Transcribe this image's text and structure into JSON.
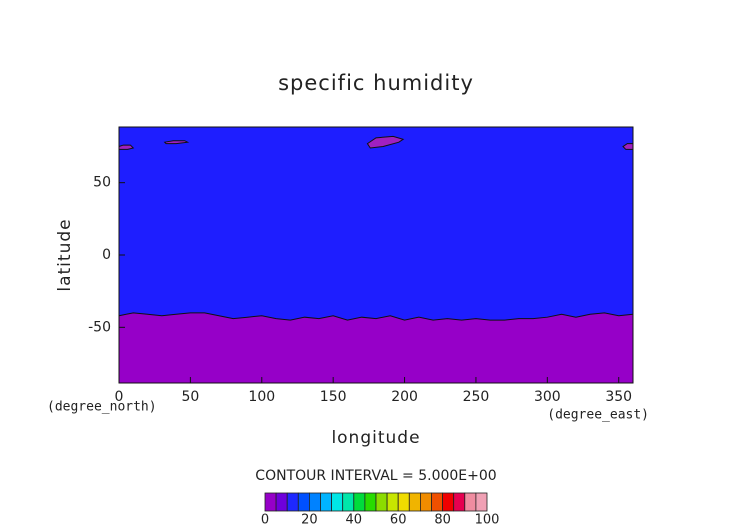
{
  "chart_data": {
    "type": "contour",
    "title": "specific humidity",
    "x_label": "longitude",
    "y_label": "latitude",
    "x_unit": "(degree_east)",
    "y_unit": "(degree_north)",
    "xlim": [
      0,
      360
    ],
    "xticks": [
      0,
      50,
      100,
      150,
      200,
      250,
      300,
      350
    ],
    "ylim": [
      -88.5,
      88.5
    ],
    "yticks": [
      -50,
      0,
      50
    ],
    "above_color": "#1e1eff",
    "below_color": "#9600c8",
    "patch_color": "#a020c0",
    "boundary": {
      "x": [
        0,
        10,
        20,
        30,
        40,
        50,
        60,
        70,
        80,
        90,
        100,
        110,
        120,
        130,
        140,
        150,
        160,
        170,
        180,
        190,
        200,
        210,
        220,
        230,
        240,
        250,
        260,
        270,
        280,
        290,
        300,
        310,
        320,
        330,
        340,
        350,
        360
      ],
      "y": [
        -42,
        -40,
        -41,
        -42,
        -41,
        -40,
        -40,
        -42,
        -44,
        -43,
        -42,
        -44,
        -45,
        -43,
        -44,
        -42,
        -45,
        -43,
        -44,
        -42,
        -45,
        -43,
        -45,
        -44,
        -45,
        -44,
        -45,
        -45,
        -44,
        -44,
        -43,
        -41,
        -43,
        -41,
        -40,
        -42,
        -41
      ]
    },
    "patches": [
      {
        "x": [
          0,
          3,
          8,
          10,
          6,
          0
        ],
        "y": [
          75,
          76,
          76,
          74,
          73,
          73
        ]
      },
      {
        "x": [
          32,
          38,
          46,
          48,
          40,
          33
        ],
        "y": [
          78,
          79,
          79,
          78,
          77,
          77
        ]
      },
      {
        "x": [
          174,
          180,
          192,
          199,
          196,
          185,
          176
        ],
        "y": [
          77,
          81,
          82,
          80,
          78,
          75,
          74
        ]
      },
      {
        "x": [
          353,
          356,
          360,
          360,
          355
        ],
        "y": [
          75,
          77,
          77,
          73,
          73
        ]
      }
    ],
    "contour_interval": "CONTOUR INTERVAL = 5.000E+00",
    "colorbar": {
      "levels": [
        0,
        5,
        10,
        15,
        20,
        25,
        30,
        35,
        40,
        45,
        50,
        55,
        60,
        65,
        70,
        75,
        80,
        85,
        90,
        95,
        100
      ],
      "colors": [
        "#9600c8",
        "#6e00dc",
        "#1e28ff",
        "#0050ff",
        "#0082ff",
        "#00b4ff",
        "#00e6e6",
        "#00e6aa",
        "#00dc3c",
        "#28dc00",
        "#8cdc00",
        "#c8e600",
        "#f0dc00",
        "#f0b400",
        "#f08c00",
        "#f05000",
        "#f00000",
        "#e60050",
        "#f08ca0",
        "#f0a0b4"
      ],
      "ticks": [
        0,
        20,
        40,
        60,
        80,
        100
      ]
    }
  }
}
